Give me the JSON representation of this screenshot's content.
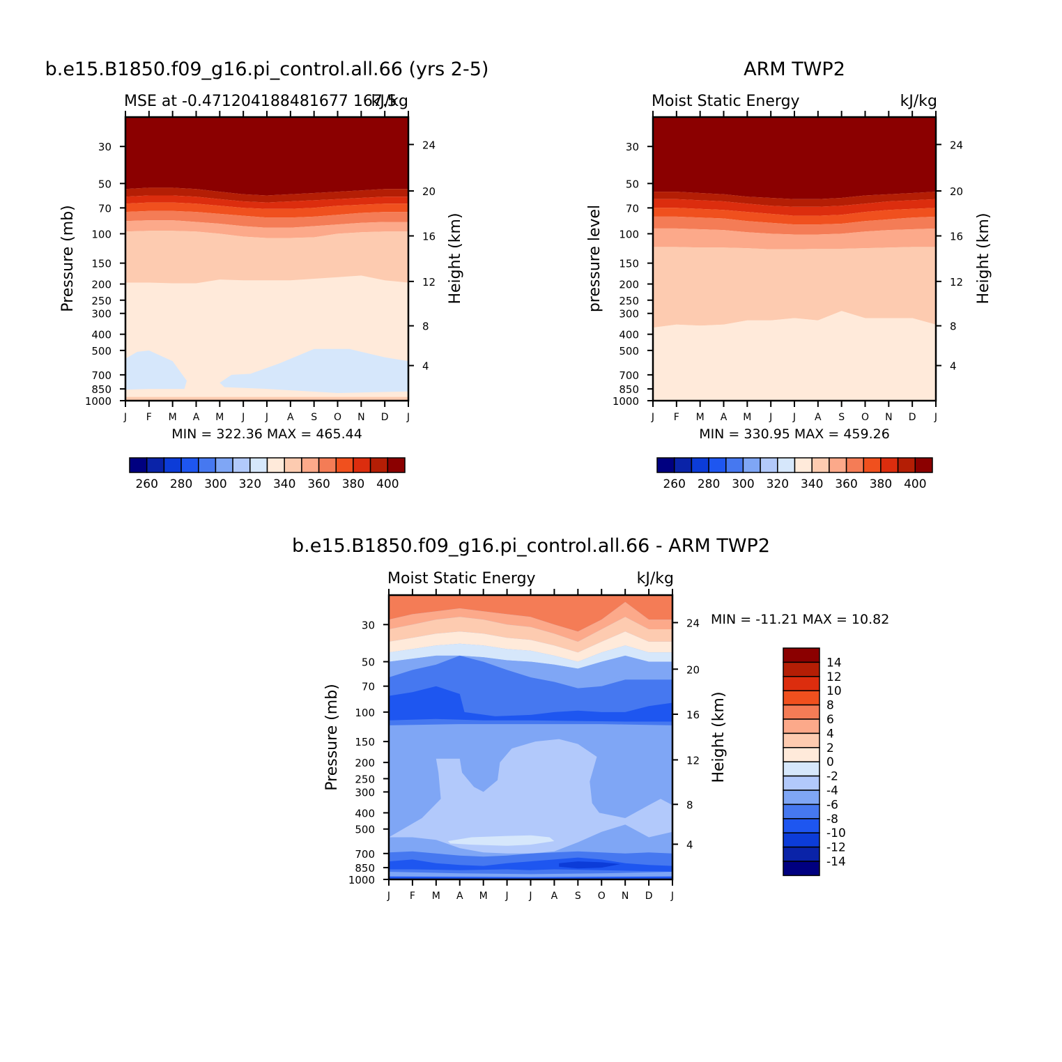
{
  "colors": {
    "mse_levels": [
      "#000080",
      "#0a23a8",
      "#0c3cd8",
      "#1e56f0",
      "#4678f0",
      "#7fa6f5",
      "#b2c9fb",
      "#d6e7fb",
      "#ffeada",
      "#fdcbb0",
      "#fca98a",
      "#f47c56",
      "#f0501e",
      "#dc2d0e",
      "#b41e05",
      "#8b0000"
    ],
    "diff_levels": [
      "#000080",
      "#0a23a8",
      "#0c3cd8",
      "#1e56f0",
      "#4678f0",
      "#7fa6f5",
      "#b2c9fb",
      "#d6e7fb",
      "#ffeada",
      "#fdcbb0",
      "#fca98a",
      "#f47c56",
      "#f0501e",
      "#dc2d0e",
      "#b41e05",
      "#8b0000"
    ]
  },
  "panels": {
    "left": {
      "main_title": "b.e15.B1850.f09_g16.pi_control.all.66 (yrs 2-5)",
      "sub_left": "MSE at -0.471204188481677 167.5",
      "sub_right": "kJ/kg",
      "ylabel": "Pressure (mb)",
      "ylabel_right": "Height (km)",
      "minmax": "MIN = 322.36 MAX = 465.44"
    },
    "right": {
      "main_title": "ARM TWP2",
      "sub_left": "Moist Static Energy",
      "sub_right": "kJ/kg",
      "ylabel": "pressure level",
      "ylabel_right": "Height (km)",
      "minmax": "MIN = 330.95 MAX = 459.26"
    },
    "bottom": {
      "main_title": "b.e15.B1850.f09_g16.pi_control.all.66 - ARM TWP2",
      "sub_left": "Moist Static Energy",
      "sub_right": "kJ/kg",
      "ylabel": "Pressure (mb)",
      "ylabel_right": "Height (km)",
      "minmax": "MIN = -11.21 MAX =  10.82"
    }
  },
  "chart_data": [
    {
      "type": "heatmap",
      "title": "b.e15.B1850.f09_g16.pi_control.all.66 (yrs 2-5)",
      "subtitle": "MSE at -0.471204188481677 167.5",
      "units": "kJ/kg",
      "xlabel": "",
      "ylabel": "Pressure (mb)",
      "ylabel_right": "Height (km)",
      "x_ticks": [
        "J",
        "F",
        "M",
        "A",
        "M",
        "J",
        "J",
        "A",
        "S",
        "O",
        "N",
        "D",
        "J"
      ],
      "y_ticks": [
        "30",
        "50",
        "70",
        "100",
        "150",
        "200",
        "250",
        "300",
        "400",
        "500",
        "700",
        "850",
        "1000"
      ],
      "y_ticks_right": [
        "24",
        "20",
        "16",
        "12",
        "8",
        "4"
      ],
      "ylim": [
        1000,
        20
      ],
      "y_scale": "log",
      "colorbar_levels": [
        250,
        260,
        270,
        280,
        290,
        300,
        310,
        320,
        330,
        340,
        350,
        360,
        370,
        380,
        390,
        400,
        410
      ],
      "colorbar_labels": [
        "260",
        "280",
        "300",
        "320",
        "340",
        "360",
        "380",
        "400"
      ],
      "colorbar_placement": "bottom",
      "min": 322.36,
      "max": 465.44,
      "months": [
        0,
        1,
        2,
        3,
        4,
        5,
        6,
        7,
        8,
        9,
        10,
        11,
        12
      ],
      "boundaries": [
        {
          "level": 400,
          "pressure": [
            54,
            53,
            53,
            54,
            56,
            58,
            59,
            58,
            57,
            56,
            55,
            54,
            54
          ]
        },
        {
          "level": 390,
          "pressure": [
            60,
            59,
            59,
            60,
            62,
            64,
            65,
            64,
            63,
            62,
            61,
            60,
            60
          ]
        },
        {
          "level": 380,
          "pressure": [
            66,
            65,
            65,
            66,
            68,
            70,
            71,
            71,
            70,
            68,
            67,
            66,
            66
          ]
        },
        {
          "level": 370,
          "pressure": [
            74,
            73,
            73,
            74,
            76,
            78,
            80,
            80,
            79,
            77,
            75,
            74,
            74
          ]
        },
        {
          "level": 360,
          "pressure": [
            84,
            83,
            83,
            85,
            87,
            90,
            92,
            92,
            90,
            88,
            86,
            85,
            85
          ]
        },
        {
          "level": 350,
          "pressure": [
            97,
            96,
            96,
            97,
            100,
            104,
            106,
            106,
            105,
            100,
            98,
            97,
            97
          ]
        },
        {
          "level": 340,
          "pressure": [
            196,
            196,
            198,
            198,
            188,
            190,
            190,
            190,
            186,
            182,
            178,
            190,
            196
          ]
        }
      ],
      "blob_320_330": [
        {
          "month": 0.0,
          "pressure": 560
        },
        {
          "month": 0.5,
          "pressure": 510
        },
        {
          "month": 1.0,
          "pressure": 500
        },
        {
          "month": 2.0,
          "pressure": 580
        },
        {
          "month": 2.6,
          "pressure": 760
        },
        {
          "month": 2.5,
          "pressure": 850
        },
        {
          "month": 1.0,
          "pressure": 850
        },
        {
          "month": 0.0,
          "pressure": 860
        },
        {
          "month": 4.0,
          "pressure": 780
        },
        {
          "month": 4.5,
          "pressure": 700
        },
        {
          "month": 5.3,
          "pressure": 690
        },
        {
          "month": 6.5,
          "pressure": 600
        },
        {
          "month": 8.0,
          "pressure": 490
        },
        {
          "month": 9.5,
          "pressure": 490
        },
        {
          "month": 11.0,
          "pressure": 550
        },
        {
          "month": 12.0,
          "pressure": 580
        },
        {
          "month": 12.0,
          "pressure": 880
        },
        {
          "month": 9.0,
          "pressure": 900
        },
        {
          "month": 6.0,
          "pressure": 850
        },
        {
          "month": 4.2,
          "pressure": 830
        }
      ]
    },
    {
      "type": "heatmap",
      "title": "ARM TWP2",
      "subtitle": "Moist Static Energy",
      "units": "kJ/kg",
      "xlabel": "",
      "ylabel": "pressure level",
      "ylabel_right": "Height (km)",
      "x_ticks": [
        "J",
        "F",
        "M",
        "A",
        "M",
        "J",
        "J",
        "A",
        "S",
        "O",
        "N",
        "D",
        "J"
      ],
      "y_ticks": [
        "30",
        "50",
        "70",
        "100",
        "150",
        "200",
        "250",
        "300",
        "400",
        "500",
        "700",
        "850",
        "1000"
      ],
      "y_ticks_right": [
        "24",
        "20",
        "16",
        "12",
        "8",
        "4"
      ],
      "ylim": [
        1000,
        20
      ],
      "y_scale": "log",
      "colorbar_levels": [
        250,
        260,
        270,
        280,
        290,
        300,
        310,
        320,
        330,
        340,
        350,
        360,
        370,
        380,
        390,
        400,
        410
      ],
      "colorbar_labels": [
        "260",
        "280",
        "300",
        "320",
        "340",
        "360",
        "380",
        "400"
      ],
      "colorbar_placement": "bottom",
      "min": 330.95,
      "max": 459.26,
      "months": [
        0,
        1,
        2,
        3,
        4,
        5,
        6,
        7,
        8,
        9,
        10,
        11,
        12
      ],
      "boundaries": [
        {
          "level": 400,
          "pressure": [
            56,
            56,
            57,
            58,
            60,
            61,
            62,
            62,
            61,
            59,
            58,
            57,
            56
          ]
        },
        {
          "level": 390,
          "pressure": [
            62,
            62,
            63,
            64,
            66,
            68,
            69,
            69,
            68,
            66,
            64,
            63,
            62
          ]
        },
        {
          "level": 380,
          "pressure": [
            70,
            70,
            71,
            72,
            74,
            76,
            78,
            78,
            77,
            74,
            72,
            71,
            70
          ]
        },
        {
          "level": 370,
          "pressure": [
            79,
            79,
            80,
            81,
            84,
            86,
            88,
            88,
            87,
            84,
            82,
            80,
            79
          ]
        },
        {
          "level": 360,
          "pressure": [
            93,
            93,
            94,
            95,
            98,
            100,
            101,
            101,
            100,
            97,
            95,
            94,
            93
          ]
        },
        {
          "level": 350,
          "pressure": [
            120,
            120,
            121,
            121,
            122,
            124,
            124,
            123,
            123,
            122,
            121,
            120,
            120
          ]
        },
        {
          "level": 340,
          "pressure": [
            365,
            350,
            355,
            350,
            330,
            330,
            320,
            330,
            290,
            320,
            320,
            320,
            350
          ]
        },
        {
          "level": 330,
          "pressure": [
            950,
            950,
            930,
            940,
            950,
            950,
            950,
            950,
            950,
            950,
            950,
            950,
            950
          ]
        }
      ]
    },
    {
      "type": "heatmap",
      "title": "b.e15.B1850.f09_g16.pi_control.all.66 - ARM TWP2",
      "subtitle": "Moist Static Energy",
      "units": "kJ/kg",
      "xlabel": "",
      "ylabel": "Pressure (mb)",
      "ylabel_right": "Height (km)",
      "x_ticks": [
        "J",
        "F",
        "M",
        "A",
        "M",
        "J",
        "J",
        "A",
        "S",
        "O",
        "N",
        "D",
        "J"
      ],
      "y_ticks": [
        "30",
        "50",
        "70",
        "100",
        "150",
        "200",
        "250",
        "300",
        "400",
        "500",
        "700",
        "850",
        "1000"
      ],
      "y_ticks_right": [
        "24",
        "20",
        "16",
        "12",
        "8",
        "4"
      ],
      "ylim": [
        1000,
        20
      ],
      "y_scale": "log",
      "colorbar_levels": [
        -16,
        -14,
        -12,
        -10,
        -8,
        -6,
        -4,
        -2,
        0,
        2,
        4,
        6,
        8,
        10,
        12,
        14,
        16
      ],
      "colorbar_labels": [
        "14",
        "12",
        "10",
        "8",
        "6",
        "4",
        "2",
        "0",
        "-2",
        "-4",
        "-6",
        "-8",
        "-10",
        "-12",
        "-14"
      ],
      "colorbar_placement": "right",
      "min": -11.21,
      "max": 10.82,
      "months": [
        0,
        1,
        2,
        3,
        4,
        5,
        6,
        7,
        8,
        9,
        10,
        11,
        12
      ],
      "boundaries": [
        {
          "level": 6,
          "pressure": [
            28,
            26,
            25,
            24,
            25,
            26,
            27,
            30,
            33,
            28,
            22,
            28,
            28
          ]
        },
        {
          "level": 4,
          "pressure": [
            32,
            30,
            28,
            27,
            28,
            30,
            31,
            34,
            38,
            32,
            27,
            32,
            32
          ]
        },
        {
          "level": 2,
          "pressure": [
            38,
            36,
            34,
            33,
            34,
            36,
            37,
            40,
            44,
            38,
            33,
            38,
            38
          ]
        },
        {
          "level": 0,
          "pressure": [
            44,
            42,
            40,
            39,
            40,
            42,
            43,
            46,
            50,
            44,
            40,
            44,
            44
          ]
        },
        {
          "level": -2,
          "pressure": [
            50,
            48,
            46,
            46,
            47,
            49,
            50,
            52,
            55,
            50,
            46,
            50,
            50
          ]
        }
      ]
    }
  ]
}
